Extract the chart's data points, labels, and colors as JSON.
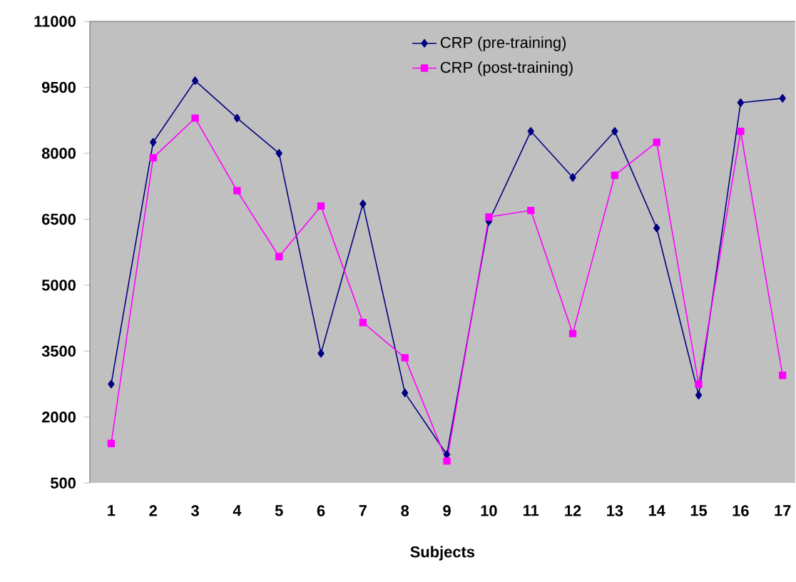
{
  "chart_data": {
    "type": "line",
    "xlabel": "Subjects",
    "categories": [
      "1",
      "2",
      "3",
      "4",
      "5",
      "6",
      "7",
      "8",
      "9",
      "10",
      "11",
      "12",
      "13",
      "14",
      "15",
      "16",
      "17"
    ],
    "ylim": [
      500,
      11000
    ],
    "yticks": [
      500,
      2000,
      3500,
      5000,
      6500,
      8000,
      9500,
      11000
    ],
    "grid": false,
    "legend": "top right",
    "series": [
      {
        "name": "CRP (pre-training)",
        "color": "#000080",
        "marker": "diamond",
        "values": [
          2750,
          8250,
          9650,
          8800,
          8000,
          3450,
          6850,
          2550,
          1150,
          6450,
          8500,
          7450,
          8500,
          6300,
          2500,
          9150,
          9250
        ]
      },
      {
        "name": "CRP (post-training)",
        "color": "#ff00ff",
        "marker": "square",
        "values": [
          1400,
          7900,
          8800,
          7150,
          5650,
          6800,
          4150,
          3350,
          1000,
          6550,
          6700,
          3900,
          7500,
          8250,
          2750,
          8500,
          2950
        ]
      }
    ]
  }
}
